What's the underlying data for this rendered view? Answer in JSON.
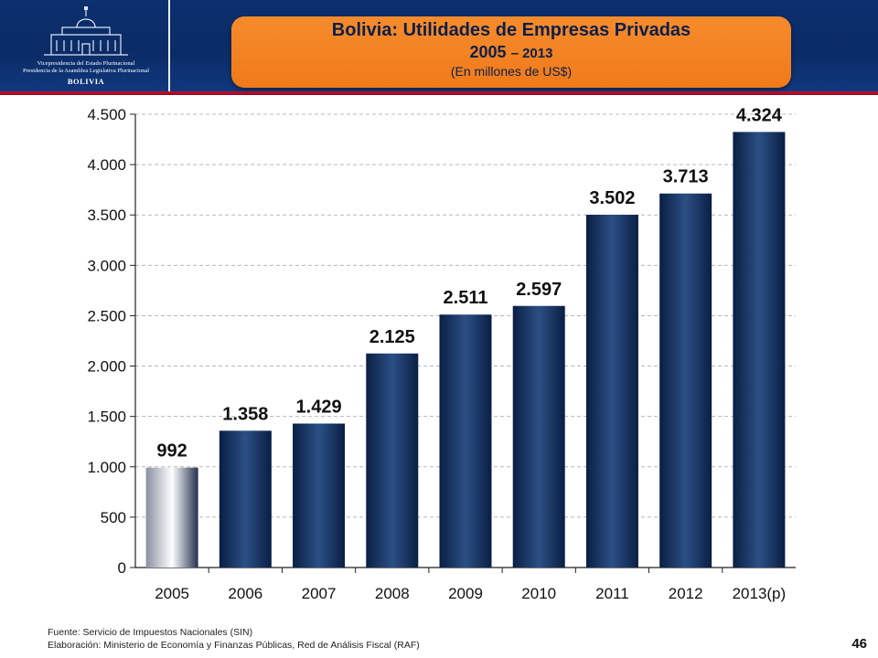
{
  "header": {
    "logo_line1": "Vicepresidencia del Estado Plurinacional",
    "logo_line2": "Presidencia de la Asamblea Legislativa Plurinacional",
    "logo_line3": "BOLIVIA",
    "title": "Bolivia: Utilidades de Empresas Privadas",
    "years_main": "2005",
    "years_rest": "– 2013",
    "units": "(En millones de US$)"
  },
  "colors": {
    "header_bg": "#0c2f6e",
    "title_box": "#f68b2c",
    "bar_dark": "#0a1f44",
    "bar_mid": "#2b4f85",
    "bar_first": "#8a8fa0",
    "accent_red": "#c8102e"
  },
  "chart_data": {
    "type": "bar",
    "categories": [
      "2005",
      "2006",
      "2007",
      "2008",
      "2009",
      "2010",
      "2011",
      "2012",
      "2013(p)"
    ],
    "values": [
      992,
      1358,
      1429,
      2125,
      2511,
      2597,
      3502,
      3713,
      4324
    ],
    "value_labels": [
      "992",
      "1.358",
      "1.429",
      "2.125",
      "2.511",
      "2.597",
      "3.502",
      "3.713",
      "4.324"
    ],
    "ylim": [
      0,
      4500
    ],
    "yticks": [
      0,
      500,
      1000,
      1500,
      2000,
      2500,
      3000,
      3500,
      4000,
      4500
    ],
    "ytick_labels": [
      "0",
      "500",
      "1.000",
      "1.500",
      "2.000",
      "2.500",
      "3.000",
      "3.500",
      "4.000",
      "4.500"
    ],
    "grid": true,
    "title": "Bolivia: Utilidades de Empresas Privadas 2005 – 2013",
    "ylabel": "",
    "xlabel": ""
  },
  "footer": {
    "source": "Fuente: Servicio de Impuestos Nacionales (SIN)",
    "elaboration": "Elaboración: Ministerio de Economía y Finanzas Públicas, Red de Análisis Fiscal (RAF)",
    "page_number": "46"
  }
}
